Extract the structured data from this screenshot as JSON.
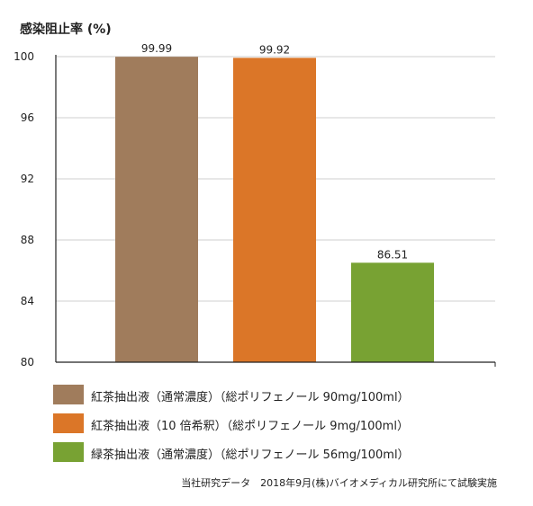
{
  "chart_data": {
    "type": "bar",
    "ylabel": "感染阻止率 (%)",
    "ylim": [
      80,
      100
    ],
    "yticks": [
      80,
      84,
      88,
      92,
      96,
      100
    ],
    "grid": true,
    "legend_position": "bottom",
    "categories": [
      "紅茶抽出液（通常濃度）（総ポリフェノール 90mg/100ml）",
      "紅茶抽出液（10 倍希釈）（総ポリフェノール 9mg/100ml）",
      "緑茶抽出液（通常濃度）（総ポリフェノール 56mg/100ml）"
    ],
    "values": [
      99.99,
      99.92,
      86.51
    ],
    "value_labels": [
      "99.99",
      "99.92",
      "86.51"
    ],
    "colors": [
      "#a07c5c",
      "#db7628",
      "#78a233"
    ]
  },
  "source_note": "当社研究データ　2018年9月(株)バイオメディカル研究所にて試験実施"
}
